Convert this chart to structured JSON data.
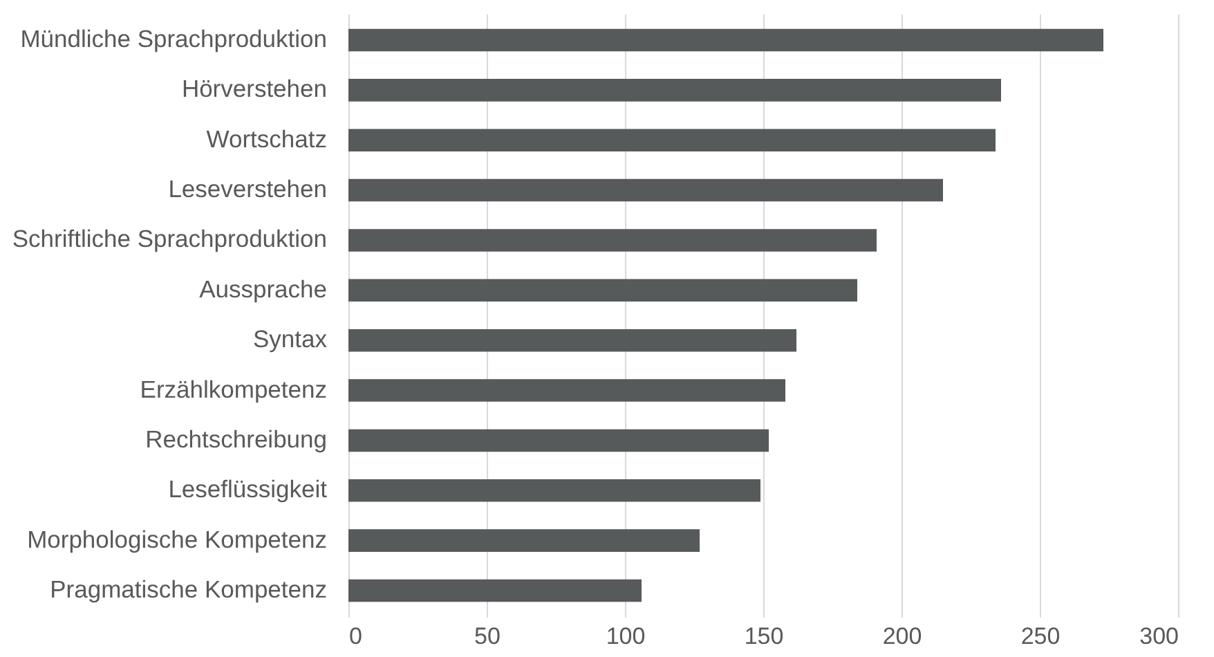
{
  "chart_data": {
    "type": "bar",
    "orientation": "horizontal",
    "categories": [
      "Mündliche Sprachproduktion",
      "Hörverstehen",
      "Wortschatz",
      "Leseverstehen",
      "Schriftliche Sprachproduktion",
      "Aussprache",
      "Syntax",
      "Erzählkompetenz",
      "Rechtschreibung",
      "Leseflüssigkeit",
      "Morphologische Kompetenz",
      "Pragmatische Kompetenz"
    ],
    "values": [
      273,
      236,
      234,
      215,
      191,
      184,
      162,
      158,
      152,
      149,
      127,
      106
    ],
    "color": "#575a5a",
    "xlim": [
      0,
      300
    ],
    "xticks": [
      0,
      50,
      100,
      150,
      200,
      250,
      300
    ],
    "grid": "x"
  }
}
